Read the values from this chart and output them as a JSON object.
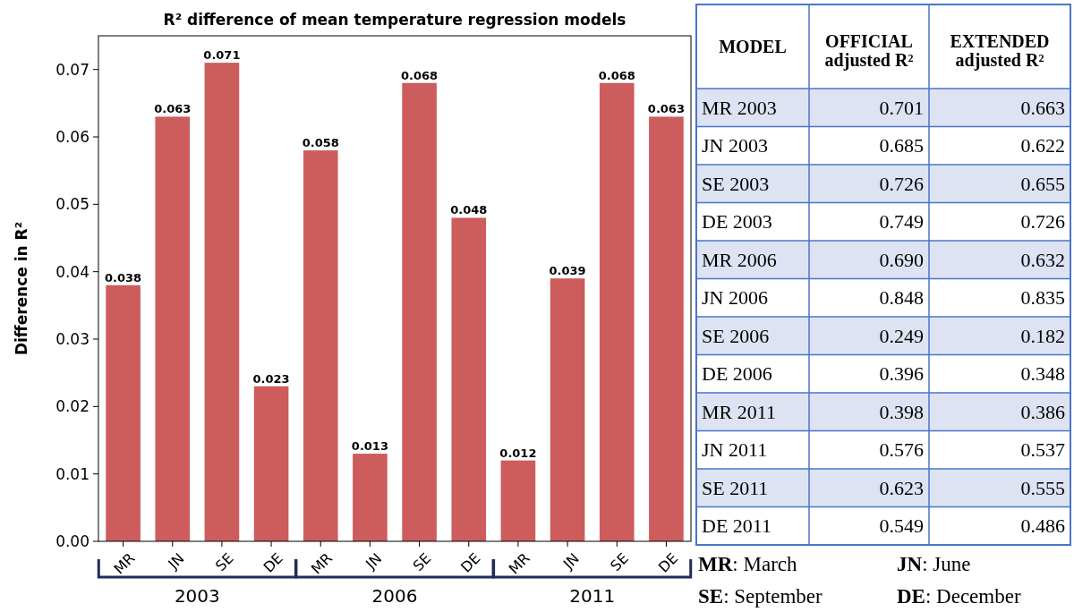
{
  "chart_data": [
    {
      "type": "bar",
      "title": "R² difference of mean temperature regression models",
      "ylabel": "Difference in R²",
      "categories": [
        "MR",
        "JN",
        "SE",
        "DE",
        "MR",
        "JN",
        "SE",
        "DE",
        "MR",
        "JN",
        "SE",
        "DE"
      ],
      "values": [
        0.038,
        0.063,
        0.071,
        0.023,
        0.058,
        0.013,
        0.068,
        0.048,
        0.012,
        0.039,
        0.068,
        0.063
      ],
      "color": "#cd5c5c",
      "ylim": [
        0,
        0.075
      ],
      "yticks": [
        {
          "value": 0,
          "label": "0.00"
        },
        0.01,
        0.02,
        0.03,
        0.04,
        0.05,
        0.06,
        0.07
      ],
      "data_labels": true,
      "grid": false,
      "annotations": [
        "2003",
        "2006",
        "2011"
      ]
    },
    {
      "type": "other",
      "xlabel": "MODEL",
      "categories": [
        "MR 2003",
        "JN 2003",
        "SE 2003",
        "DE 2003",
        "MR 2006",
        "JN 2006",
        "SE 2006",
        "DE 2006",
        "MR 2011",
        "JN 2011",
        "SE 2011",
        "DE 2011"
      ],
      "series": [
        {
          "name": "OFFICIAL adjusted R²",
          "values": [
            0.701,
            0.685,
            0.726,
            0.749,
            0.69,
            0.848,
            0.249,
            0.396,
            0.398,
            0.576,
            0.623,
            0.549
          ],
          "value_labels": [
            "0.701",
            "0.685",
            "0.726",
            "0.749",
            "0.690",
            "0.848",
            "0.249",
            "0.396",
            "0.398",
            "0.576",
            "0.623",
            "0.549"
          ]
        },
        {
          "name": "EXTENDED adjusted R²",
          "values": [
            0.663,
            0.622,
            0.655,
            0.726,
            0.632,
            0.835,
            0.182,
            0.348,
            0.386,
            0.537,
            0.555,
            0.486
          ]
        }
      ],
      "data_labels": true,
      "annotations": [
        "MR: March",
        "JN: June",
        "SE: September",
        "DE: December"
      ]
    }
  ]
}
